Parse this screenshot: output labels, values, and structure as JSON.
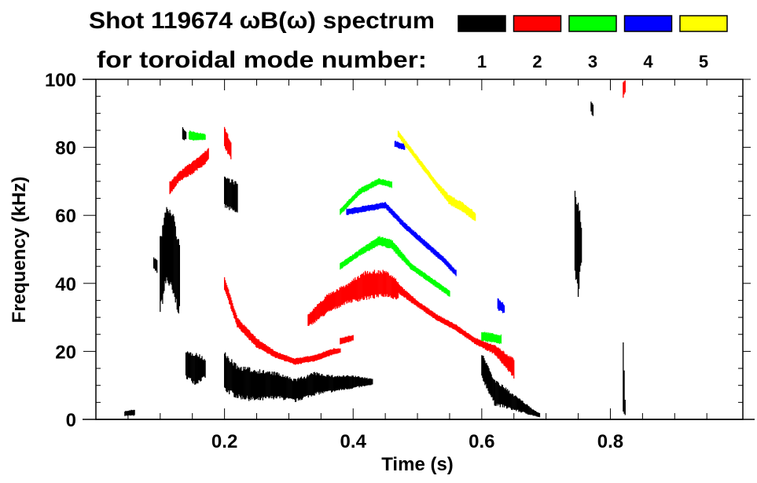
{
  "chart_data": {
    "type": "heatmap",
    "title_line1": "Shot 119674 ωB(ω) spectrum",
    "title_line2": "for toroidal mode number:",
    "xlabel": "Time (s)",
    "ylabel": "Frequency (kHz)",
    "xlim": [
      0.0,
      1.006
    ],
    "ylim": [
      0,
      100
    ],
    "xticks": [
      0.2,
      0.4,
      0.6,
      0.8
    ],
    "xtick_labels": [
      "0.2",
      "0.4",
      "0.6",
      "0.8"
    ],
    "yticks": [
      0,
      20,
      40,
      60,
      80,
      100
    ],
    "ytick_labels": [
      "0",
      "20",
      "40",
      "60",
      "80",
      "100"
    ],
    "legend": {
      "placement": "top-right",
      "entries": [
        {
          "label": "1",
          "color": "#000000"
        },
        {
          "label": "2",
          "color": "#ff0000"
        },
        {
          "label": "3",
          "color": "#00ff00"
        },
        {
          "label": "4",
          "color": "#0000ff"
        },
        {
          "label": "5",
          "color": "#ffff00"
        }
      ]
    },
    "series": [
      {
        "name": "1",
        "color": "#000000",
        "features": [
          [
            [
              0.045,
              1,
              2.5
            ],
            [
              0.06,
              1,
              3
            ]
          ],
          [
            [
              0.09,
              44,
              48
            ],
            [
              0.095,
              43,
              47
            ]
          ],
          [
            [
              0.1,
              30,
              55
            ],
            [
              0.11,
              40,
              63
            ],
            [
              0.12,
              35,
              62
            ],
            [
              0.13,
              30,
              52
            ]
          ],
          [
            [
              0.135,
              82,
              86
            ],
            [
              0.14,
              82,
              85
            ]
          ],
          [
            [
              0.14,
              12,
              20
            ],
            [
              0.155,
              10,
              20
            ],
            [
              0.17,
              12,
              18
            ]
          ],
          [
            [
              0.2,
              62,
              72
            ],
            [
              0.22,
              60,
              70
            ]
          ],
          [
            [
              0.2,
              8,
              20
            ],
            [
              0.22,
              6,
              16
            ],
            [
              0.25,
              5,
              15
            ],
            [
              0.28,
              6,
              14
            ],
            [
              0.31,
              5,
              12
            ],
            [
              0.34,
              7,
              14
            ],
            [
              0.37,
              8,
              13
            ],
            [
              0.4,
              9,
              13
            ],
            [
              0.43,
              10,
              12
            ]
          ],
          [
            [
              0.6,
              12,
              20
            ],
            [
              0.62,
              4,
              12
            ],
            [
              0.64,
              3,
              9
            ],
            [
              0.66,
              2,
              6
            ],
            [
              0.68,
              1,
              3
            ],
            [
              0.69,
              0.5,
              2
            ]
          ],
          [
            [
              0.745,
              40,
              68
            ],
            [
              0.75,
              36,
              65
            ],
            [
              0.755,
              45,
              58
            ]
          ],
          [
            [
              0.77,
              90,
              94
            ],
            [
              0.773,
              89,
              93
            ]
          ],
          [
            [
              0.82,
              2,
              24
            ],
            [
              0.823,
              1,
              6
            ]
          ]
        ]
      },
      {
        "name": "2",
        "color": "#ff0000",
        "features": [
          [
            [
              0.115,
              66,
              70
            ],
            [
              0.13,
              70,
              73
            ],
            [
              0.15,
              72,
              76
            ],
            [
              0.17,
              75,
              79
            ],
            [
              0.175,
              76,
              80
            ]
          ],
          [
            [
              0.2,
              80,
              86
            ],
            [
              0.21,
              76,
              82
            ]
          ],
          [
            [
              0.2,
              38,
              42
            ],
            [
              0.22,
              27,
              30
            ],
            [
              0.25,
              21,
              24
            ],
            [
              0.28,
              18,
              20
            ],
            [
              0.31,
              16,
              18
            ],
            [
              0.34,
              17,
              19
            ],
            [
              0.37,
              19,
              21
            ],
            [
              0.38,
              19.5,
              21
            ]
          ],
          [
            [
              0.33,
              27,
              31
            ],
            [
              0.36,
              31,
              37
            ],
            [
              0.39,
              34,
              40
            ],
            [
              0.42,
              35,
              44
            ],
            [
              0.45,
              36,
              44
            ],
            [
              0.47,
              35,
              41
            ]
          ],
          [
            [
              0.38,
              22,
              24
            ],
            [
              0.4,
              23,
              25
            ]
          ],
          [
            [
              0.47,
              37,
              40
            ],
            [
              0.5,
              33,
              35
            ],
            [
              0.53,
              29,
              31
            ],
            [
              0.56,
              26,
              28
            ],
            [
              0.59,
              22,
              24
            ],
            [
              0.62,
              19,
              22
            ],
            [
              0.65,
              12,
              18
            ]
          ],
          [
            [
              0.82,
              94,
              100
            ],
            [
              0.823,
              96,
              100
            ]
          ]
        ]
      },
      {
        "name": "3",
        "color": "#00ff00",
        "features": [
          [
            [
              0.145,
              82,
              85
            ],
            [
              0.17,
              82,
              84
            ]
          ],
          [
            [
              0.38,
              60,
              62
            ],
            [
              0.41,
              66,
              68
            ],
            [
              0.44,
              69,
              71
            ],
            [
              0.46,
              68,
              70
            ]
          ],
          [
            [
              0.38,
              44,
              46
            ],
            [
              0.41,
              48,
              50
            ],
            [
              0.44,
              51,
              54
            ],
            [
              0.46,
              50,
              53
            ],
            [
              0.49,
              44,
              46
            ],
            [
              0.52,
              40,
              42
            ],
            [
              0.55,
              36,
              38
            ]
          ],
          [
            [
              0.6,
              23,
              26
            ],
            [
              0.63,
              22,
              25
            ]
          ]
        ]
      },
      {
        "name": "4",
        "color": "#0000ff",
        "features": [
          [
            [
              0.39,
              60,
              62
            ],
            [
              0.42,
              61,
              63
            ],
            [
              0.45,
              62,
              64
            ],
            [
              0.48,
              56,
              58
            ],
            [
              0.51,
              51,
              53
            ],
            [
              0.54,
              46,
              48
            ],
            [
              0.56,
              42,
              44
            ]
          ],
          [
            [
              0.465,
              80,
              82
            ],
            [
              0.48,
              79,
              81
            ]
          ],
          [
            [
              0.625,
              32,
              36
            ],
            [
              0.635,
              31,
              34
            ]
          ]
        ]
      },
      {
        "name": "5",
        "color": "#ffff00",
        "features": [
          [
            [
              0.47,
              83,
              85
            ],
            [
              0.49,
              78,
              80
            ],
            [
              0.51,
              73,
              75
            ],
            [
              0.53,
              68,
              70
            ],
            [
              0.55,
              63,
              66
            ],
            [
              0.57,
              61,
              64
            ],
            [
              0.59,
              58,
              61
            ]
          ]
        ]
      }
    ]
  }
}
